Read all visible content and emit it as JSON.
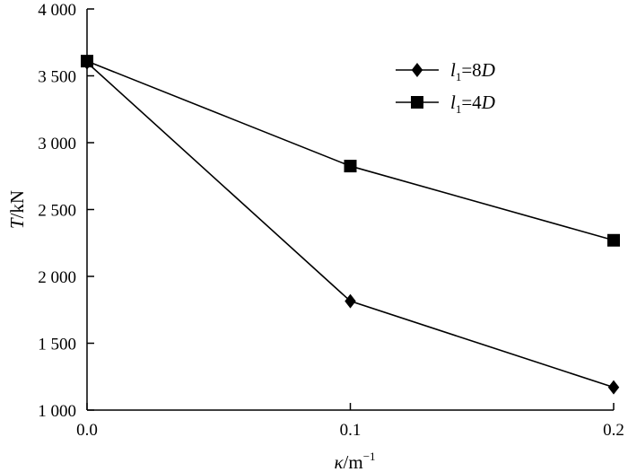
{
  "chart_data": {
    "type": "line",
    "x": [
      0.0,
      0.1,
      0.2
    ],
    "xticks": [
      "0.0",
      "0.1",
      "0.2"
    ],
    "yticks": [
      {
        "value": 1000,
        "label": "1 000"
      },
      {
        "value": 1500,
        "label": "1 500"
      },
      {
        "value": 2000,
        "label": "2 000"
      },
      {
        "value": 2500,
        "label": "2 500"
      },
      {
        "value": 3000,
        "label": "3 000"
      },
      {
        "value": 3500,
        "label": "3 500"
      },
      {
        "value": 4000,
        "label": "4 000"
      }
    ],
    "xlim": [
      0.0,
      0.2
    ],
    "ylim": [
      1000,
      4000
    ],
    "xlabel": {
      "symbol": "κ",
      "unit": "/m",
      "sup": "−1"
    },
    "ylabel": {
      "symbol": "T",
      "unit": "/kN"
    },
    "grid": false,
    "legend_position": "top-right",
    "series": [
      {
        "name": {
          "var": "l",
          "sub": "1",
          "rest": "=8",
          "italic_end": "D"
        },
        "marker": "diamond",
        "color": "#000000",
        "values": [
          3600,
          1815,
          1170
        ]
      },
      {
        "name": {
          "var": "l",
          "sub": "1",
          "rest": "=4",
          "italic_end": "D"
        },
        "marker": "square",
        "color": "#000000",
        "values": [
          3610,
          2825,
          2270
        ]
      }
    ]
  }
}
